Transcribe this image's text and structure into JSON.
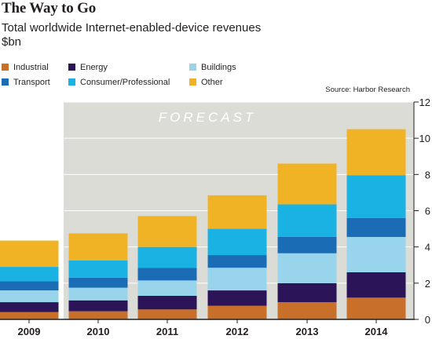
{
  "chart_data": {
    "type": "bar",
    "stacked": true,
    "title": "The Way to Go",
    "subtitle": "Total worldwide Internet-enabled-device revenues",
    "ylabel": "$bn",
    "source": "Source: Harbor Research",
    "shaded_region_label": "FORECAST",
    "categories": [
      "2009",
      "2010",
      "2011",
      "2012",
      "2013",
      "2014"
    ],
    "ylim": [
      0,
      12
    ],
    "yticks": [
      0,
      2,
      4,
      6,
      8,
      10,
      12
    ],
    "legend_position": "top-left",
    "series": [
      {
        "name": "Industrial",
        "color": "#c8702a",
        "values": [
          0.4,
          0.45,
          0.55,
          0.75,
          0.95,
          1.2
        ]
      },
      {
        "name": "Energy",
        "color": "#2b1458",
        "values": [
          0.55,
          0.6,
          0.75,
          0.85,
          1.05,
          1.4
        ]
      },
      {
        "name": "Buildings",
        "color": "#98d5ec",
        "values": [
          0.65,
          0.7,
          0.85,
          1.25,
          1.65,
          1.95
        ]
      },
      {
        "name": "Transport",
        "color": "#1a6db4",
        "values": [
          0.5,
          0.55,
          0.7,
          0.7,
          0.9,
          1.05
        ]
      },
      {
        "name": "Consumer/Professional",
        "color": "#1ab1e3",
        "values": [
          0.8,
          0.95,
          1.15,
          1.45,
          1.8,
          2.35
        ]
      },
      {
        "name": "Other",
        "color": "#efb325",
        "values": [
          1.45,
          1.5,
          1.7,
          1.85,
          2.25,
          2.55
        ]
      }
    ]
  }
}
